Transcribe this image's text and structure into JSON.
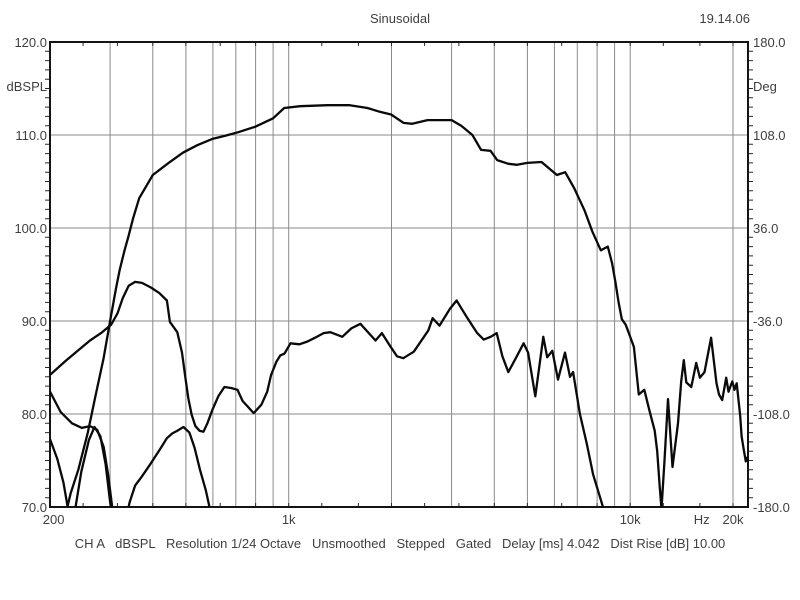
{
  "header": {
    "title": "Sinusoidal",
    "timestamp": "19.14.06"
  },
  "status": {
    "segments": [
      "CH A",
      "dBSPL",
      "Resolution 1/24 Octave",
      "Unsmoothed",
      "Stepped",
      "Gated",
      "Delay [ms] 4.042",
      "Dist Rise [dB] 10.00"
    ],
    "text": "CH A   dBSPL   Resolution 1/24 Octave   Unsmoothed   Stepped   Gated   Delay [ms] 4.042   Dist Rise [dB] 10.00"
  },
  "axes": {
    "y_left": {
      "unit": "dBSPL",
      "min": 70,
      "max": 120,
      "ticks": [
        "120.0",
        "110.0",
        "100.0",
        "90.0",
        "80.0",
        "70.0"
      ]
    },
    "y_right": {
      "unit": "Deg",
      "min": -180,
      "max": 180,
      "ticks": [
        "180.0",
        "108.0",
        "36.0",
        "-36.0",
        "-108.0",
        "-180.0"
      ]
    },
    "x": {
      "unit": "Hz",
      "scale": "log",
      "min": 200,
      "max": 20000,
      "tick_labels": [
        {
          "label": "200",
          "f": 205
        },
        {
          "label": "1k",
          "f": 1000
        },
        {
          "label": "10k",
          "f": 10000
        },
        {
          "label": "Hz",
          "f": 16200
        },
        {
          "label": "20k",
          "f": 20000
        }
      ],
      "gridline_freqs": [
        300,
        400,
        500,
        600,
        700,
        800,
        900,
        1000,
        2000,
        3000,
        4000,
        5000,
        6000,
        7000,
        8000,
        9000,
        10000,
        20000
      ],
      "minor_tick_freqs": [
        250,
        315,
        400,
        500,
        630,
        800,
        1000,
        1250,
        1600,
        2000,
        2500,
        3150,
        4000,
        5000,
        6300,
        8000,
        10000,
        12500,
        16000,
        20000
      ]
    }
  },
  "colors": {
    "background": "#ffffff",
    "grid": "#8a8a8a",
    "curve": "#0a0a0a",
    "text": "#3f3f3f",
    "border": "#141414"
  },
  "chart_data": {
    "type": "line",
    "title": "Sinusoidal",
    "xlabel": "Hz",
    "ylabel_left": "dBSPL",
    "ylabel_right": "Deg",
    "x_range": [
      200,
      20000
    ],
    "y_left_range": [
      70,
      120
    ],
    "y_right_range": [
      -180,
      180
    ],
    "grid": true,
    "series": [
      {
        "name": "spl-response",
        "points": [
          [
            220,
            68.5
          ],
          [
            230,
            71.5
          ],
          [
            242,
            74
          ],
          [
            258,
            78
          ],
          [
            272,
            82
          ],
          [
            287,
            86
          ],
          [
            300,
            90
          ],
          [
            312,
            93.5
          ],
          [
            320,
            95.5
          ],
          [
            330,
            97.5
          ],
          [
            340,
            99.2
          ],
          [
            350,
            101
          ],
          [
            365,
            103.2
          ],
          [
            400,
            105.7
          ],
          [
            445,
            107
          ],
          [
            490,
            108.1
          ],
          [
            540,
            108.9
          ],
          [
            600,
            109.6
          ],
          [
            650,
            109.9
          ],
          [
            712,
            110.3
          ],
          [
            800,
            110.9
          ],
          [
            900,
            111.8
          ],
          [
            970,
            112.9
          ],
          [
            1080,
            113.1
          ],
          [
            1300,
            113.2
          ],
          [
            1510,
            113.2
          ],
          [
            1700,
            112.9
          ],
          [
            1850,
            112.5
          ],
          [
            1995,
            112.2
          ],
          [
            2170,
            111.3
          ],
          [
            2300,
            111.2
          ],
          [
            2550,
            111.6
          ],
          [
            2800,
            111.6
          ],
          [
            3000,
            111.6
          ],
          [
            3200,
            111
          ],
          [
            3450,
            110
          ],
          [
            3660,
            108.4
          ],
          [
            3900,
            108.3
          ],
          [
            4080,
            107.3
          ],
          [
            4400,
            106.9
          ],
          [
            4660,
            106.8
          ],
          [
            5000,
            107
          ],
          [
            5500,
            107.1
          ],
          [
            6100,
            105.7
          ],
          [
            6450,
            106
          ],
          [
            6850,
            104.3
          ],
          [
            7350,
            101.9
          ],
          [
            7750,
            99.6
          ],
          [
            8200,
            97.6
          ],
          [
            8600,
            98
          ],
          [
            8850,
            96.2
          ],
          [
            9050,
            94.2
          ],
          [
            9250,
            92
          ],
          [
            9450,
            90.2
          ],
          [
            9700,
            89.6
          ],
          [
            9950,
            88.5
          ],
          [
            10250,
            87.2
          ],
          [
            10600,
            82.1
          ],
          [
            11000,
            82.6
          ],
          [
            11400,
            80.3
          ],
          [
            11800,
            78.2
          ],
          [
            12000,
            76
          ],
          [
            12200,
            72.2
          ],
          [
            12350,
            69.8
          ],
          [
            12600,
            75
          ],
          [
            12900,
            81.6
          ],
          [
            13300,
            74.3
          ],
          [
            13800,
            79
          ],
          [
            14100,
            83.5
          ],
          [
            14350,
            85.8
          ],
          [
            14600,
            83.4
          ],
          [
            15100,
            82.9
          ],
          [
            15600,
            85.5
          ],
          [
            16000,
            83.9
          ],
          [
            16500,
            84.5
          ],
          [
            17250,
            88.2
          ],
          [
            17900,
            83.3
          ],
          [
            18200,
            82.1
          ],
          [
            18600,
            81.5
          ],
          [
            19100,
            83.9
          ],
          [
            19400,
            82.4
          ],
          [
            19900,
            83.5
          ],
          [
            20200,
            82.6
          ],
          [
            20500,
            83.3
          ],
          [
            21000,
            79.8
          ],
          [
            21200,
            77.6
          ],
          [
            21500,
            76.2
          ],
          [
            21800,
            74.9
          ],
          [
            22000,
            75.3
          ],
          [
            22300,
            74.8
          ],
          [
            22600,
            74.9
          ]
        ]
      },
      {
        "name": "secondary-response",
        "points": [
          [
            200,
            84.2
          ],
          [
            222,
            85.7
          ],
          [
            243,
            86.9
          ],
          [
            262,
            87.9
          ],
          [
            282,
            88.7
          ],
          [
            302,
            89.6
          ],
          [
            315,
            90.8
          ],
          [
            327,
            92.5
          ],
          [
            340,
            93.8
          ],
          [
            355,
            94.2
          ],
          [
            372,
            94.1
          ],
          [
            395,
            93.6
          ],
          [
            418,
            93
          ],
          [
            440,
            92.2
          ],
          [
            449,
            89.9
          ],
          [
            472,
            88.8
          ],
          [
            487,
            86.6
          ],
          [
            497,
            84.2
          ],
          [
            508,
            81.7
          ],
          [
            520,
            79.9
          ],
          [
            533,
            78.7
          ],
          [
            548,
            78.2
          ],
          [
            563,
            78.1
          ],
          [
            578,
            79
          ],
          [
            597,
            80.4
          ],
          [
            622,
            81.9
          ],
          [
            648,
            82.9
          ],
          [
            678,
            82.8
          ],
          [
            708,
            82.6
          ],
          [
            733,
            81.4
          ],
          [
            790,
            80.1
          ],
          [
            832,
            81
          ],
          [
            865,
            82.4
          ],
          [
            888,
            84.2
          ],
          [
            920,
            85.6
          ],
          [
            945,
            86.3
          ],
          [
            972,
            86.5
          ],
          [
            1012,
            87.6
          ],
          [
            1075,
            87.5
          ],
          [
            1135,
            87.8
          ],
          [
            1195,
            88.2
          ],
          [
            1265,
            88.7
          ],
          [
            1325,
            88.8
          ],
          [
            1435,
            88.3
          ],
          [
            1525,
            89.2
          ],
          [
            1622,
            89.7
          ],
          [
            1725,
            88.6
          ],
          [
            1795,
            87.9
          ],
          [
            1875,
            88.7
          ],
          [
            1975,
            87.4
          ],
          [
            2075,
            86.2
          ],
          [
            2165,
            86
          ],
          [
            2325,
            86.7
          ],
          [
            2565,
            89
          ],
          [
            2639,
            90.3
          ],
          [
            2765,
            89.5
          ],
          [
            2965,
            91.3
          ],
          [
            3102,
            92.2
          ],
          [
            3325,
            90.4
          ],
          [
            3565,
            88.7
          ],
          [
            3725,
            88
          ],
          [
            3905,
            88.3
          ],
          [
            4065,
            88.7
          ],
          [
            4225,
            86.2
          ],
          [
            4395,
            84.5
          ],
          [
            4625,
            86
          ],
          [
            4875,
            87.6
          ],
          [
            5025,
            86.6
          ],
          [
            5275,
            81.9
          ],
          [
            5565,
            88.3
          ],
          [
            5715,
            86.1
          ],
          [
            5915,
            86.8
          ],
          [
            6145,
            83.7
          ],
          [
            6445,
            86.6
          ],
          [
            6665,
            84
          ],
          [
            6805,
            84.5
          ],
          [
            7125,
            80
          ],
          [
            7465,
            76.8
          ],
          [
            7785,
            73.5
          ],
          [
            8155,
            71.1
          ],
          [
            8430,
            69.3
          ]
        ]
      },
      {
        "name": "distortion-1",
        "points": [
          [
            200,
            82.4
          ],
          [
            215,
            80.2
          ],
          [
            232,
            79
          ],
          [
            248,
            78.5
          ],
          [
            262,
            78.7
          ],
          [
            275,
            78.3
          ],
          [
            287,
            76.5
          ],
          [
            296,
            73.5
          ],
          [
            303,
            70.5
          ],
          [
            308,
            68.5
          ],
          [
            333,
            68.5
          ],
          [
            342,
            70.5
          ],
          [
            355,
            72.3
          ],
          [
            372,
            73.3
          ],
          [
            395,
            74.7
          ],
          [
            420,
            76.2
          ],
          [
            440,
            77.4
          ],
          [
            456,
            77.9
          ],
          [
            472,
            78.2
          ],
          [
            492,
            78.6
          ],
          [
            512,
            78
          ],
          [
            530,
            76.4
          ],
          [
            550,
            74
          ],
          [
            572,
            71.8
          ],
          [
            588,
            69.8
          ],
          [
            596,
            68.5
          ]
        ]
      },
      {
        "name": "distortion-2",
        "points": [
          [
            200,
            77.3
          ],
          [
            210,
            75.2
          ],
          [
            219,
            72.6
          ],
          [
            227,
            69.3
          ],
          [
            236,
            69.3
          ],
          [
            247,
            73.8
          ],
          [
            260,
            77.2
          ],
          [
            270,
            78.6
          ],
          [
            281,
            77.6
          ],
          [
            291,
            74.6
          ],
          [
            299,
            71
          ],
          [
            305,
            68.5
          ]
        ]
      }
    ]
  }
}
